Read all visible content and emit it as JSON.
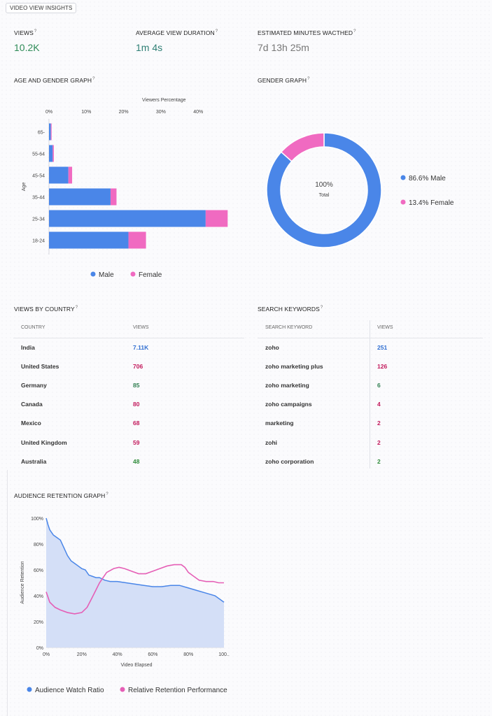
{
  "page_title": "VIDEO VIEW INSIGHTS",
  "metrics": [
    {
      "label": "VIEWS",
      "help": "?",
      "value": "10.2K"
    },
    {
      "label": "AVERAGE VIEW DURATION",
      "help": "?",
      "value": "1m 4s"
    },
    {
      "label": "ESTIMATED MINUTES WACTHED",
      "help": "?",
      "value": "7d 13h 25m"
    }
  ],
  "age_gender": {
    "title": "AGE AND GENDER GRAPH",
    "help": "?",
    "chart_data": {
      "type": "bar",
      "orientation": "horizontal",
      "stacked": true,
      "categories": [
        "65-",
        "55-64",
        "45-54",
        "35-44",
        "25-34",
        "18-24"
      ],
      "series": [
        {
          "name": "Male",
          "values": [
            0.5,
            1.0,
            5.2,
            16.5,
            42.0,
            21.3
          ]
        },
        {
          "name": "Female",
          "values": [
            0.2,
            0.3,
            1.0,
            1.6,
            5.9,
            4.7
          ]
        }
      ],
      "x_title": "Viewers Percentage",
      "y_title": "Age",
      "xticks": [
        "0%",
        "10%",
        "20%",
        "30%",
        "40%"
      ],
      "xlim": [
        0,
        48
      ],
      "legend": "bottom",
      "colors": {
        "Male": "#4a86e8",
        "Female": "#f06ac1"
      }
    }
  },
  "gender": {
    "title": "GENDER GRAPH",
    "help": "?",
    "chart_data": {
      "type": "pie",
      "donut": true,
      "center_value": "100%",
      "center_label": "Total",
      "slices": [
        {
          "name": "Male",
          "value": 86.6,
          "label": "86.6% Male",
          "color": "#4a86e8"
        },
        {
          "name": "Female",
          "value": 13.4,
          "label": "13.4% Female",
          "color": "#f06ac1"
        }
      ],
      "legend": "right"
    }
  },
  "countries": {
    "title": "VIEWS BY COUNTRY",
    "help": "?",
    "headers": [
      "COUNTRY",
      "VIEWS"
    ],
    "rows": [
      {
        "name": "India",
        "views": "7.11K",
        "color": "#2f6ed1"
      },
      {
        "name": "United States",
        "views": "706",
        "color": "#c2185b"
      },
      {
        "name": "Germany",
        "views": "85",
        "color": "#2e7d4f"
      },
      {
        "name": "Canada",
        "views": "80",
        "color": "#c2185b"
      },
      {
        "name": "Mexico",
        "views": "68",
        "color": "#c2185b"
      },
      {
        "name": "United Kingdom",
        "views": "59",
        "color": "#c2185b"
      },
      {
        "name": "Australia",
        "views": "48",
        "color": "#2e8b3a"
      }
    ]
  },
  "keywords": {
    "title": "SEARCH KEYWORDS",
    "help": "?",
    "headers": [
      "SEARCH KEYWORD",
      "VIEWS"
    ],
    "rows": [
      {
        "name": "zoho",
        "views": "251",
        "color": "#2f6ed1"
      },
      {
        "name": "zoho marketing plus",
        "views": "126",
        "color": "#c2185b"
      },
      {
        "name": "zoho marketing",
        "views": "6",
        "color": "#2e7d4f"
      },
      {
        "name": "zoho campaigns",
        "views": "4",
        "color": "#c2185b"
      },
      {
        "name": "marketing",
        "views": "2",
        "color": "#c2185b"
      },
      {
        "name": "zohi",
        "views": "2",
        "color": "#c2185b"
      },
      {
        "name": "zoho corporation",
        "views": "2",
        "color": "#2e8b3a"
      }
    ]
  },
  "retention": {
    "title": "AUDIENCE RETENTION GRAPH",
    "help": "?",
    "chart_data": {
      "type": "area",
      "x_title": "Video Elapsed",
      "y_title": "Audience Retention",
      "xticks": [
        "0%",
        "20%",
        "40%",
        "60%",
        "80%",
        "100.."
      ],
      "yticks": [
        "0%",
        "20%",
        "40%",
        "60%",
        "80%",
        "100%"
      ],
      "xlim": [
        0,
        100
      ],
      "ylim": [
        0,
        100
      ],
      "legend": "bottom",
      "series": [
        {
          "name": "Audience Watch Ratio",
          "color": "#4a86e8",
          "x": [
            0,
            1,
            2,
            4,
            6,
            8,
            10,
            12,
            14,
            16,
            18,
            20,
            22,
            24,
            26,
            28,
            30,
            33,
            36,
            40,
            45,
            50,
            55,
            60,
            65,
            70,
            75,
            80,
            85,
            90,
            95,
            100
          ],
          "y": [
            100,
            95,
            91,
            87,
            85,
            83,
            77,
            71,
            67,
            65,
            63,
            61,
            60,
            56,
            55,
            54,
            54,
            52,
            51,
            51,
            50,
            49,
            48,
            47,
            47,
            48,
            48,
            46,
            44,
            42,
            40,
            35
          ]
        },
        {
          "name": "Relative Retention Performance",
          "color": "#e55fb6",
          "x": [
            0,
            2,
            5,
            8,
            12,
            16,
            20,
            23,
            26,
            30,
            34,
            38,
            41,
            44,
            48,
            52,
            56,
            60,
            64,
            68,
            72,
            76,
            78,
            80,
            83,
            86,
            90,
            94,
            97,
            100
          ],
          "y": [
            43,
            35,
            31,
            29,
            27,
            26,
            27,
            31,
            39,
            50,
            58,
            61,
            62,
            61,
            59,
            57,
            57,
            59,
            61,
            63,
            64,
            64,
            62,
            58,
            55,
            52,
            51,
            51,
            50,
            50
          ]
        }
      ]
    }
  }
}
